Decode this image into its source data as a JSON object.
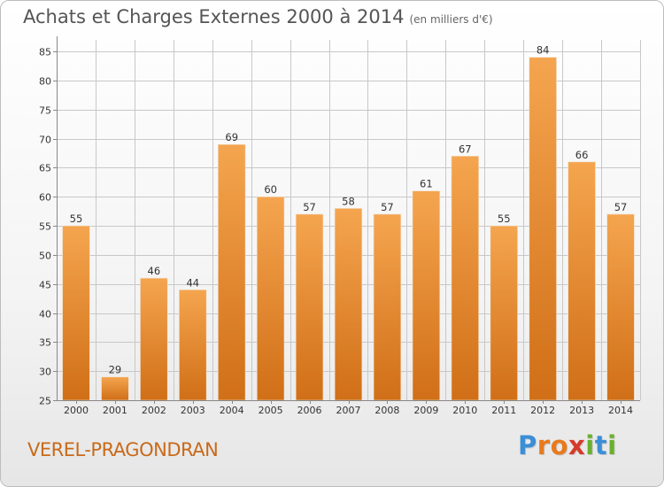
{
  "header": {
    "title": "Achats et Charges Externes 2000 à 2014",
    "subtitle": "(en milliers d'€)"
  },
  "footer": {
    "place": "VEREL-PRAGONDRAN",
    "brand": "Proxiti",
    "brand_letters": [
      "P",
      "r",
      "o",
      "x",
      "i",
      "t",
      "i"
    ],
    "brand_colors": [
      "#3a8fd6",
      "#e87a1e",
      "#e87a1e",
      "#d63a2a",
      "#6ab02f",
      "#3a8fd6",
      "#6ab02f"
    ]
  },
  "colors": {
    "bar_top": "#f5a54f",
    "bar_bottom": "#d06f17",
    "grid": "#c8c8c8",
    "axis_text": "#333333",
    "label_text": "#333333"
  },
  "chart_data": {
    "type": "bar",
    "title": "Achats et Charges Externes 2000 à 2014",
    "subtitle": "(en milliers d'€)",
    "xlabel": "",
    "ylabel": "",
    "categories": [
      "2000",
      "2001",
      "2002",
      "2003",
      "2004",
      "2005",
      "2006",
      "2007",
      "2008",
      "2009",
      "2010",
      "2011",
      "2012",
      "2013",
      "2014"
    ],
    "values": [
      55,
      29,
      46,
      44,
      69,
      60,
      57,
      58,
      57,
      61,
      67,
      55,
      84,
      66,
      57
    ],
    "ylim": [
      25,
      87
    ],
    "yticks": [
      25,
      30,
      35,
      40,
      45,
      50,
      55,
      60,
      65,
      70,
      75,
      80,
      85
    ],
    "grid": true,
    "data_labels": true
  }
}
